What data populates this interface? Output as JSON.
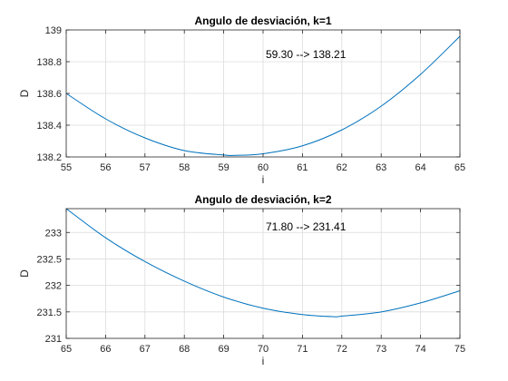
{
  "chart_data": [
    {
      "type": "line",
      "title": "Angulo de desviación, k=1",
      "xlabel": "i",
      "ylabel": "D",
      "xlim": [
        55,
        65
      ],
      "ylim": [
        138.2,
        139
      ],
      "xticks": [
        55,
        56,
        57,
        58,
        59,
        60,
        61,
        62,
        63,
        64,
        65
      ],
      "yticks": [
        138.2,
        138.4,
        138.6,
        138.8,
        139
      ],
      "ytick_labels": [
        "138.2",
        "138.4",
        "138.6",
        "138.8",
        "139"
      ],
      "grid": true,
      "annotation": "59.30 --> 138.21",
      "series": [
        {
          "color": "#0072bd",
          "x": [
            55,
            56,
            57,
            58,
            59,
            59.3,
            60,
            61,
            62,
            63,
            64,
            65
          ],
          "y": [
            138.6,
            138.44,
            138.32,
            138.24,
            138.212,
            138.21,
            138.22,
            138.27,
            138.37,
            138.52,
            138.72,
            138.96
          ]
        }
      ]
    },
    {
      "type": "line",
      "title": "Angulo de desviación, k=2",
      "xlabel": "i",
      "ylabel": "D",
      "xlim": [
        65,
        75
      ],
      "ylim": [
        231,
        233.45
      ],
      "xticks": [
        65,
        66,
        67,
        68,
        69,
        70,
        71,
        72,
        73,
        74,
        75
      ],
      "yticks": [
        231,
        231.5,
        232,
        232.5,
        233
      ],
      "ytick_labels": [
        "231",
        "231.5",
        "232",
        "232.5",
        "233"
      ],
      "grid": true,
      "annotation": "71.80 --> 231.41",
      "series": [
        {
          "color": "#0072bd",
          "x": [
            65,
            66,
            67,
            68,
            69,
            70,
            71,
            71.8,
            72,
            73,
            74,
            75
          ],
          "y": [
            233.45,
            232.9,
            232.45,
            232.08,
            231.78,
            231.57,
            231.45,
            231.41,
            231.42,
            231.5,
            231.67,
            231.9
          ]
        }
      ]
    }
  ]
}
